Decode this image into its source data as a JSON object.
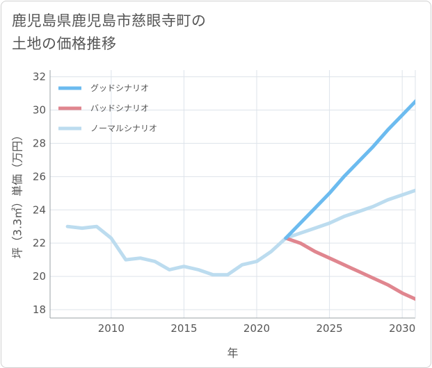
{
  "title_line1": "鹿児島県鹿児島市慈眼寺町の",
  "title_line2": "土地の価格推移",
  "chart_data": {
    "type": "line",
    "title": "鹿児島県鹿児島市慈眼寺町の土地の価格推移",
    "xlabel": "年",
    "ylabel": "坪（3.3㎡）単価（万円）",
    "xlim": [
      2005.8,
      2030.9
    ],
    "ylim": [
      17.5,
      32.4
    ],
    "x_ticks": [
      2010,
      2015,
      2020,
      2025,
      2030
    ],
    "y_ticks": [
      18,
      20,
      22,
      24,
      26,
      28,
      30,
      32
    ],
    "grid": true,
    "legend_position": "top-left",
    "series": [
      {
        "name": "グッドシナリオ",
        "color": "#6cbbef",
        "points": [
          [
            2022,
            22.3
          ],
          [
            2023,
            23.2
          ],
          [
            2024,
            24.1
          ],
          [
            2025,
            25.0
          ],
          [
            2026,
            26.0
          ],
          [
            2027,
            26.9
          ],
          [
            2028,
            27.8
          ],
          [
            2029,
            28.8
          ],
          [
            2030,
            29.7
          ],
          [
            2031,
            30.6
          ]
        ]
      },
      {
        "name": "バッドシナリオ",
        "color": "#e0868f",
        "points": [
          [
            2022,
            22.3
          ],
          [
            2023,
            22.0
          ],
          [
            2024,
            21.5
          ],
          [
            2025,
            21.1
          ],
          [
            2026,
            20.7
          ],
          [
            2027,
            20.3
          ],
          [
            2028,
            19.9
          ],
          [
            2029,
            19.5
          ],
          [
            2030,
            19.0
          ],
          [
            2031,
            18.6
          ]
        ]
      },
      {
        "name": "ノーマルシナリオ",
        "color": "#bcdcef",
        "points": [
          [
            2007,
            23.0
          ],
          [
            2008,
            22.9
          ],
          [
            2009,
            23.0
          ],
          [
            2010,
            22.3
          ],
          [
            2011,
            21.0
          ],
          [
            2012,
            21.1
          ],
          [
            2013,
            20.9
          ],
          [
            2014,
            20.4
          ],
          [
            2015,
            20.6
          ],
          [
            2016,
            20.4
          ],
          [
            2017,
            20.1
          ],
          [
            2018,
            20.1
          ],
          [
            2019,
            20.7
          ],
          [
            2020,
            20.9
          ],
          [
            2021,
            21.5
          ],
          [
            2022,
            22.3
          ],
          [
            2023,
            22.6
          ],
          [
            2024,
            22.9
          ],
          [
            2025,
            23.2
          ],
          [
            2026,
            23.6
          ],
          [
            2027,
            23.9
          ],
          [
            2028,
            24.2
          ],
          [
            2029,
            24.6
          ],
          [
            2030,
            24.9
          ],
          [
            2031,
            25.2
          ]
        ]
      }
    ]
  }
}
